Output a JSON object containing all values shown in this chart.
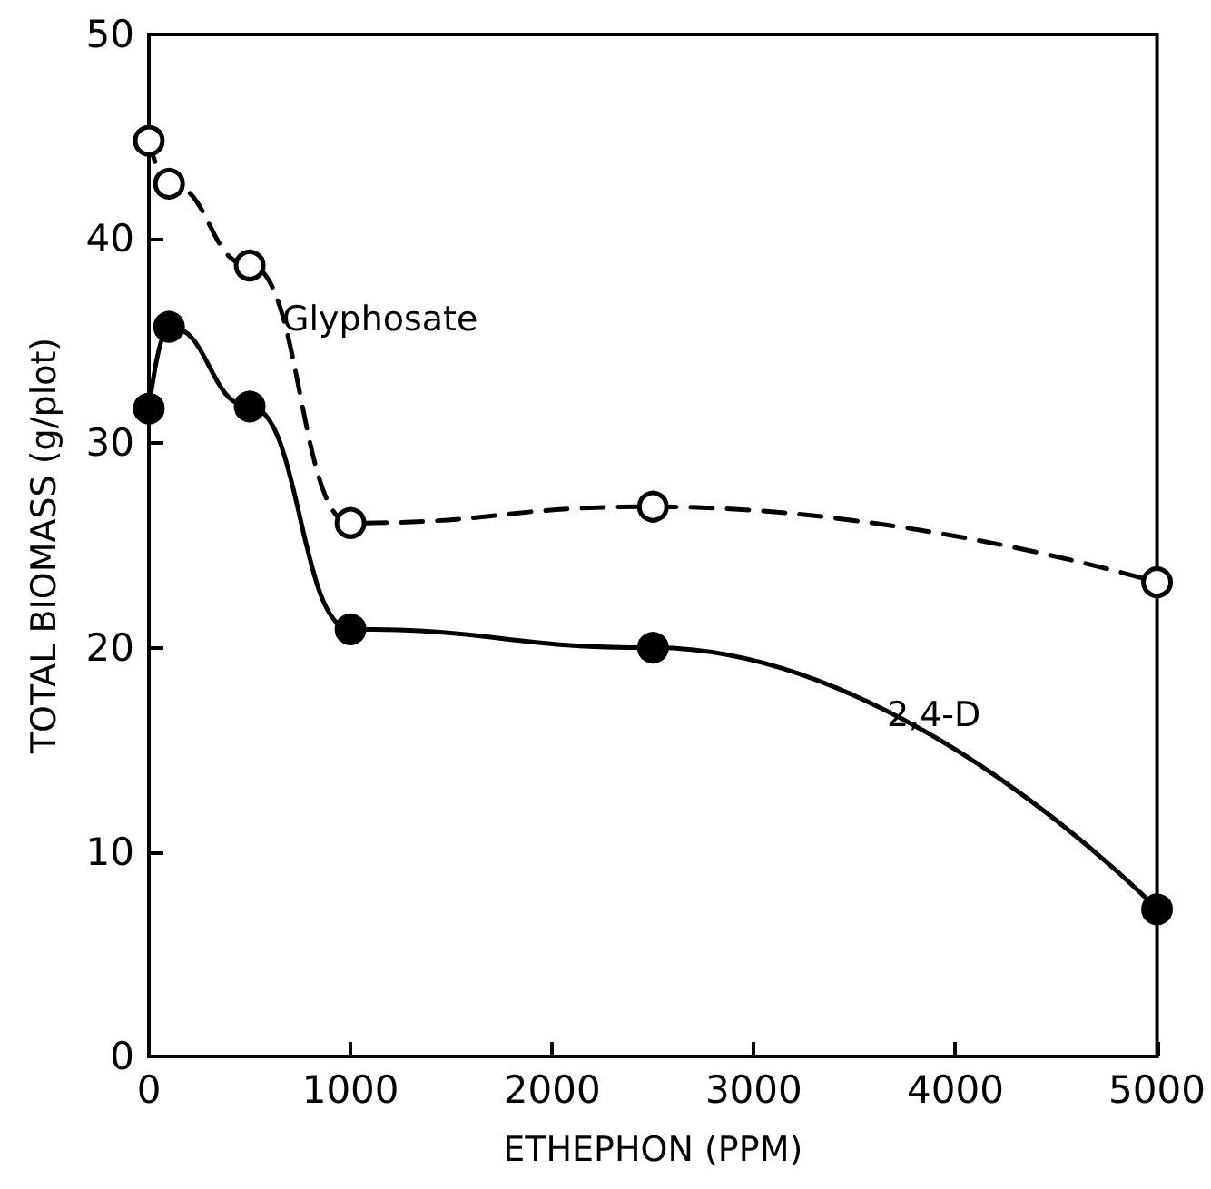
{
  "chart_data": {
    "type": "line",
    "xlabel": "ETHEPHON (PPM)",
    "ylabel": "TOTAL BIOMASS (g/plot)",
    "x": [
      0,
      100,
      500,
      1000,
      2500,
      5000
    ],
    "xlim": [
      0,
      5000
    ],
    "xticks": [
      0,
      1000,
      2000,
      3000,
      4000,
      5000
    ],
    "ylim": [
      0,
      50
    ],
    "yticks": [
      0,
      10,
      20,
      30,
      40,
      50
    ],
    "grid": false,
    "legend": false,
    "marker": "circle",
    "series": [
      {
        "name": "Glyphosate",
        "color": "#000000",
        "line_style": "dashed",
        "values": [
          44.8,
          42.7,
          38.7,
          26.1,
          26.9,
          23.2
        ]
      },
      {
        "name": "2,4-D",
        "color": "#000000",
        "line_style": "solid",
        "values": [
          31.7,
          35.7,
          31.8,
          20.9,
          20.0,
          7.2
        ]
      }
    ]
  }
}
